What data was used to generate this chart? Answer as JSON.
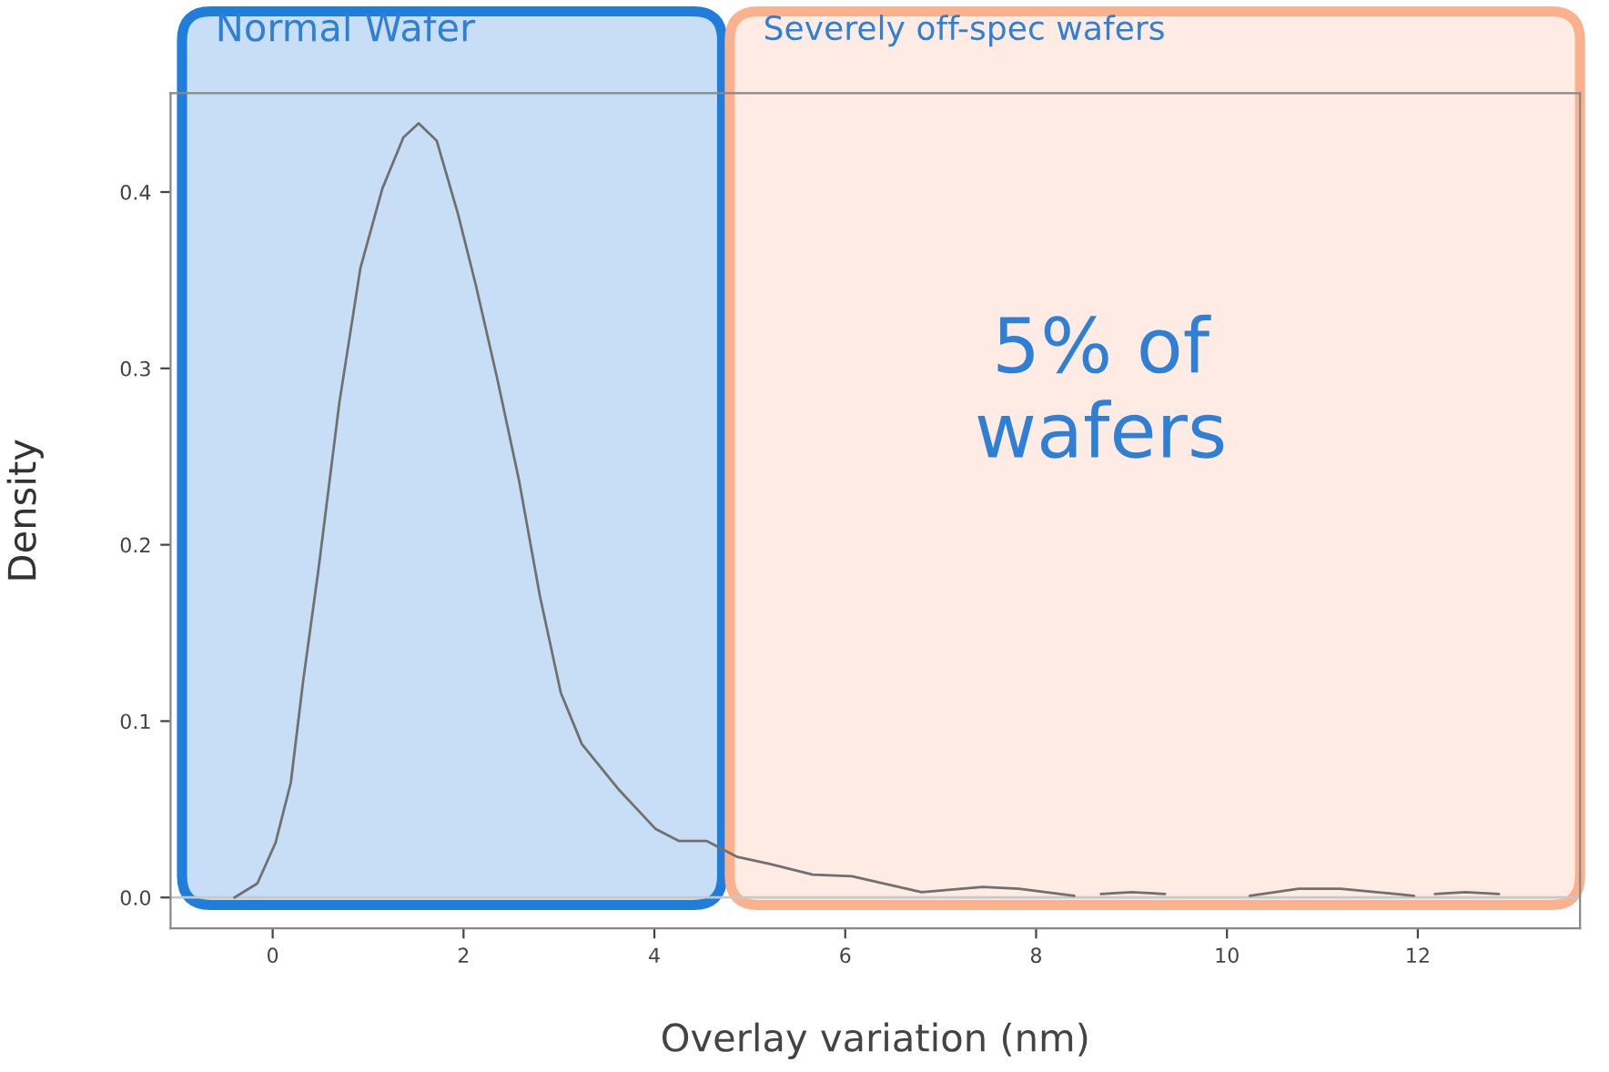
{
  "chart_data": {
    "type": "line",
    "xlabel": "Overlay variation (nm)",
    "ylabel": "Density",
    "xlim": [
      -1.07,
      13.7
    ],
    "ylim": [
      -0.0175,
      0.456
    ],
    "xticks": [
      0,
      2,
      4,
      6,
      8,
      10,
      12
    ],
    "yticks": [
      {
        "value": 0,
        "label": "0.0"
      },
      {
        "value": 0.1,
        "label": "0.1"
      },
      {
        "value": 0.2,
        "label": "0.2"
      },
      {
        "value": 0.3,
        "label": "0.3"
      },
      {
        "value": 0.4,
        "label": "0.4"
      }
    ],
    "marker": "none",
    "line_style": "solid",
    "series": [
      {
        "color": "#707070",
        "x": [
          -0.4,
          -0.16,
          0.03,
          0.19,
          0.32,
          0.48,
          0.7,
          0.92,
          1.15,
          1.37,
          1.53,
          1.72,
          1.94,
          2.13,
          2.35,
          2.58,
          2.8,
          3.02,
          3.24,
          3.63,
          4.01,
          4.26,
          4.55,
          4.87,
          5.21,
          5.66,
          6.07,
          6.8,
          7.44,
          7.82,
          8.4,
          8.54,
          8.68,
          9.0,
          9.35,
          9.8,
          10.24,
          10.75,
          11.19,
          11.96,
          12.07,
          12.18,
          12.5,
          12.85
        ],
        "values": [
          0.0,
          0.008,
          0.031,
          0.065,
          0.123,
          0.186,
          0.281,
          0.357,
          0.402,
          0.431,
          0.439,
          0.429,
          0.388,
          0.347,
          0.295,
          0.237,
          0.171,
          0.116,
          0.087,
          0.061,
          0.039,
          0.032,
          0.032,
          0.023,
          0.019,
          0.013,
          0.012,
          0.003,
          0.006,
          0.005,
          0.001,
          null,
          0.002,
          0.003,
          0.002,
          null,
          0.001,
          0.005,
          0.005,
          0.001,
          null,
          0.002,
          0.003,
          0.002
        ]
      }
    ],
    "ref_lines": [
      {
        "axis": "y",
        "value": 0,
        "color": "#c8c8c8"
      }
    ],
    "bands": [
      {
        "axis": "x",
        "from": -0.95,
        "to": 4.71,
        "label": "Normal Wafer",
        "color": "#1f7ddb"
      },
      {
        "axis": "x",
        "from": 4.79,
        "to": 13.7,
        "label": "Severely off-spec wafers",
        "color": "#fbb08e"
      }
    ],
    "annotations": [
      "5% of wafers"
    ]
  }
}
